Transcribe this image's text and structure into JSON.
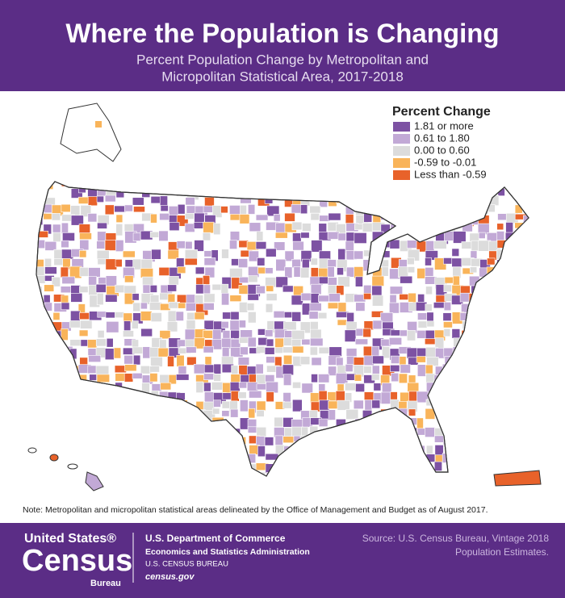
{
  "header": {
    "title": "Where the Population is Changing",
    "subtitle": [
      "Percent Population Change by Metropolitan and",
      "Micropolitan Statistical Area, 2017-2018"
    ]
  },
  "legend": {
    "title": "Percent Change",
    "items": [
      {
        "label": "1.81 or more",
        "color": "#7d52a3"
      },
      {
        "label": "0.61 to 1.80",
        "color": "#c2a9d6"
      },
      {
        "label": "0.00 to 0.60",
        "color": "#dcdcdc"
      },
      {
        "label": "-0.59 to -0.01",
        "color": "#f9b45a"
      },
      {
        "label": "Less than -0.59",
        "color": "#e8622a"
      }
    ]
  },
  "note": "Note: Metropolitan and micropolitan statistical areas delineated by the Office of Management and Budget as of August 2017.",
  "footer": {
    "logo": [
      "United States®",
      "Census",
      "Bureau"
    ],
    "department": [
      "U.S. Department of Commerce",
      "Economics and Statistics Administration",
      "U.S. CENSUS BUREAU",
      "census.gov"
    ],
    "source": [
      "Source: U.S. Census Bureau, Vintage 2018",
      "Population Estimates."
    ]
  }
}
